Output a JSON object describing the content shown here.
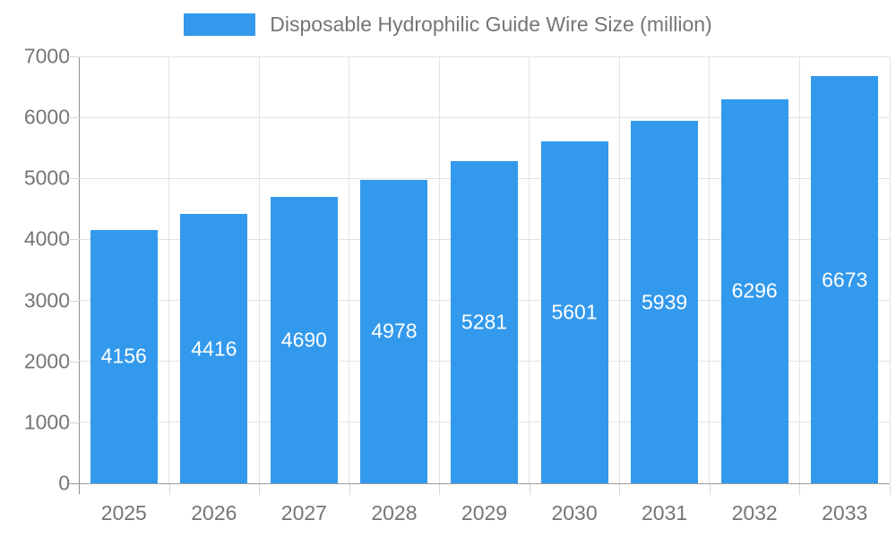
{
  "legend": {
    "label": "Disposable Hydrophilic Guide Wire Size (million)"
  },
  "chart_data": {
    "type": "bar",
    "title": "Disposable Hydrophilic Guide Wire Size (million)",
    "categories": [
      "2025",
      "2026",
      "2027",
      "2028",
      "2029",
      "2030",
      "2031",
      "2032",
      "2033"
    ],
    "values": [
      4156,
      4416,
      4690,
      4978,
      5281,
      5601,
      5939,
      6296,
      6673
    ],
    "xlabel": "",
    "ylabel": "",
    "ylim": [
      0,
      7000
    ],
    "ytick_interval": 1000,
    "ytick_labels": [
      "0",
      "1000",
      "2000",
      "3000",
      "4000",
      "5000",
      "6000",
      "7000"
    ],
    "grid": true,
    "legend_position": "top-center",
    "value_labels": "inside-middle",
    "colors": {
      "bar": "#3399EC",
      "value_label": "#ffffff",
      "axis_text": "#757575",
      "grid_line": "#e2e2e2",
      "axis_line": "#999999",
      "background": "#ffffff"
    }
  }
}
